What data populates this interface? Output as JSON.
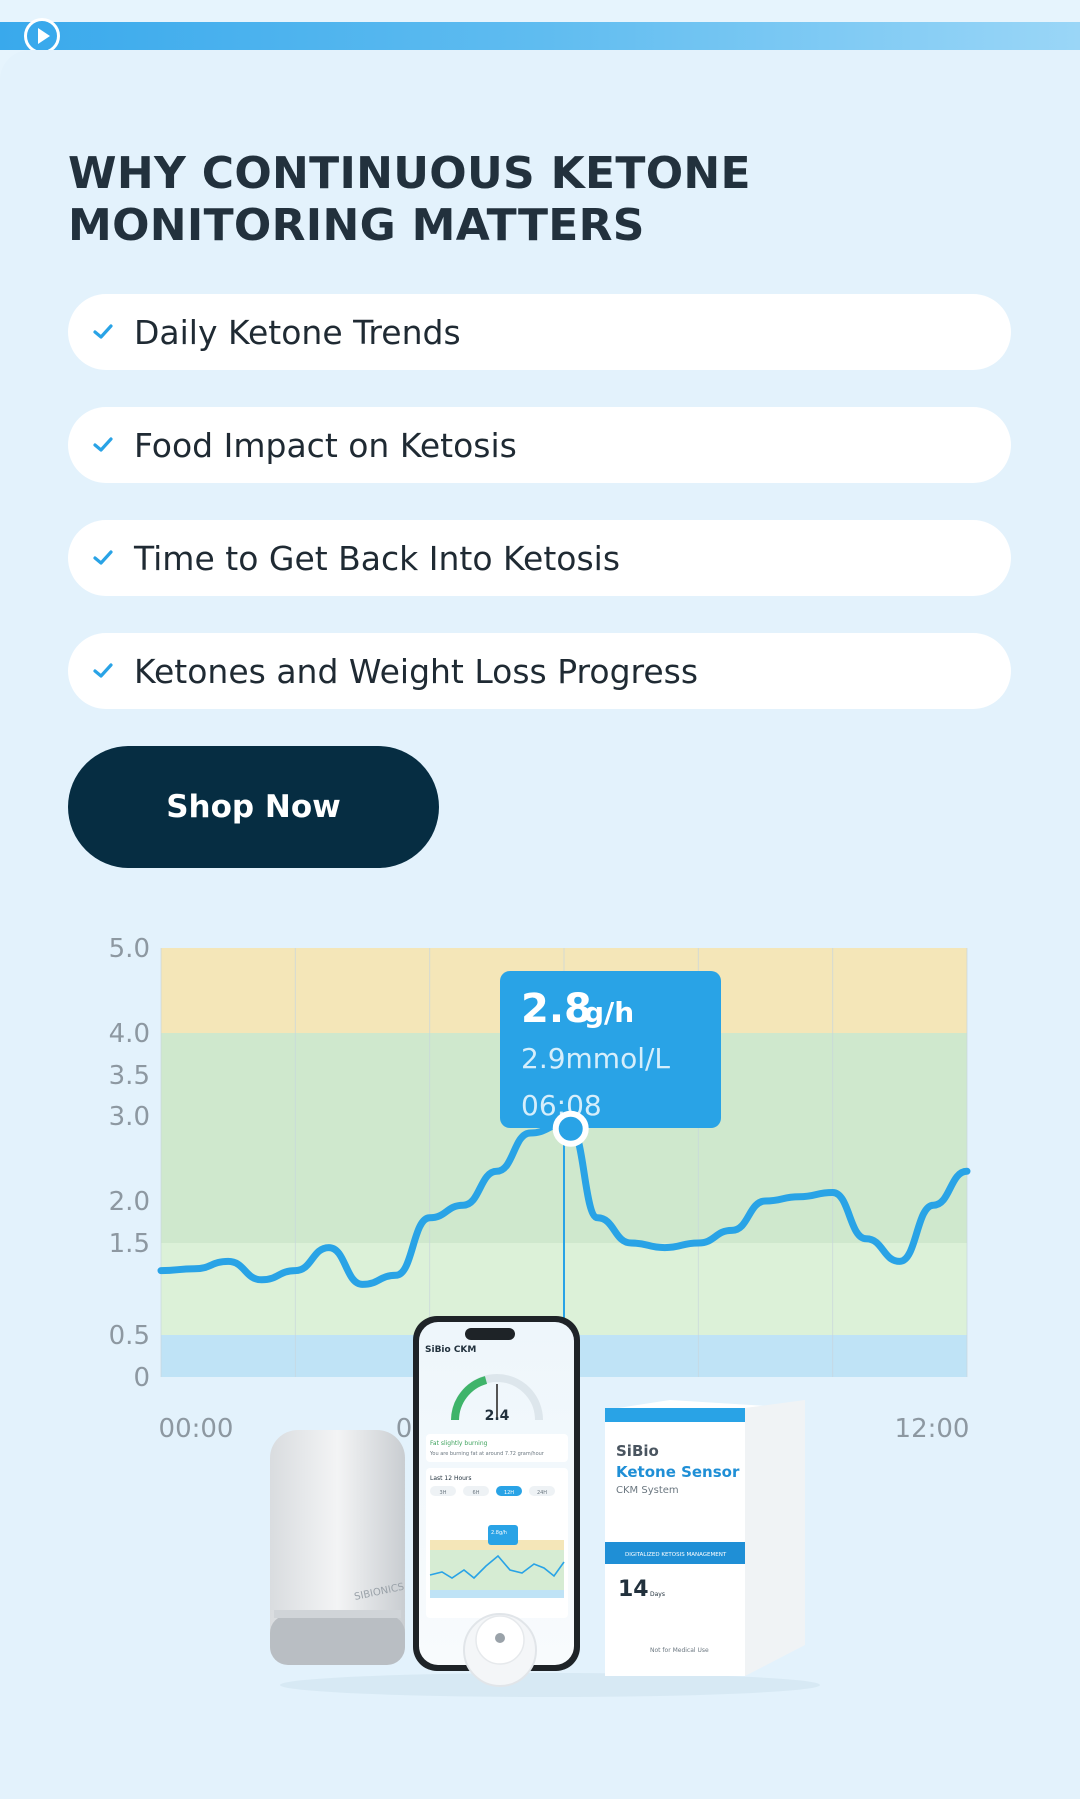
{
  "header": {
    "progress": 0.02
  },
  "title": "WHY CONTINUOUS KETONE MONITORING MATTERS",
  "features": [
    "Daily Ketone Trends",
    "Food Impact on Ketosis",
    "Time to Get Back Into Ketosis",
    "Ketones and Weight Loss Progress"
  ],
  "cta": {
    "label": "Shop Now"
  },
  "colors": {
    "accent": "#29a3e6",
    "button": "#062d42",
    "band_top": "#f4e6b8",
    "band_mid": "#cfe8cd",
    "band_low": "#dcf1d8",
    "band_bottom": "#bfe3f6"
  },
  "chart_data": {
    "type": "line",
    "ylim": [
      0,
      5
    ],
    "yticks": [
      "5.0",
      "4.0",
      "3.5",
      "3.0",
      "2.0",
      "1.5",
      "0.5",
      "0"
    ],
    "ytick_values": [
      5.0,
      4.0,
      3.5,
      3.0,
      2.0,
      1.5,
      0.5,
      0
    ],
    "xlabels": [
      "00:00",
      "0",
      "12:00"
    ],
    "x": [
      0,
      0.5,
      1,
      1.5,
      2,
      2.5,
      3,
      3.5,
      4,
      4.5,
      5,
      5.5,
      6,
      6.1,
      6.5,
      7,
      7.5,
      8,
      8.5,
      9,
      9.5,
      10,
      10.5,
      11,
      11.5,
      12
    ],
    "y": [
      1.2,
      1.22,
      1.3,
      1.1,
      1.2,
      1.45,
      1.05,
      1.15,
      1.8,
      1.95,
      2.35,
      2.8,
      2.9,
      2.85,
      1.8,
      1.5,
      1.45,
      1.5,
      1.65,
      2.0,
      2.05,
      2.1,
      1.55,
      1.3,
      1.95,
      2.35
    ],
    "tooltip": {
      "value": "2.8",
      "unit": "g/h",
      "mmol": "2.9mmol/L",
      "time": "06:08"
    },
    "highlight_x": 6.1
  },
  "product": {
    "phone": {
      "app_name": "SiBio CKM",
      "reading": "2.4",
      "status": "Fat slightly burning",
      "status_detail": "You are burning fat at around 7.72 gram/hour",
      "range_label": "Last 12 Hours",
      "range_options": [
        "3H",
        "6H",
        "12H",
        "24H"
      ],
      "tooltip_value": "2.8g/h"
    },
    "box": {
      "brand": "SiBio",
      "name": "Ketone Sensor",
      "system": "CKM System",
      "band_text": "DIGITALIZED KETOSIS MANAGEMENT",
      "days": "14",
      "days_unit": "Days",
      "footer": "Not for Medical Use"
    },
    "reader_brand": "SIBIONICS"
  }
}
